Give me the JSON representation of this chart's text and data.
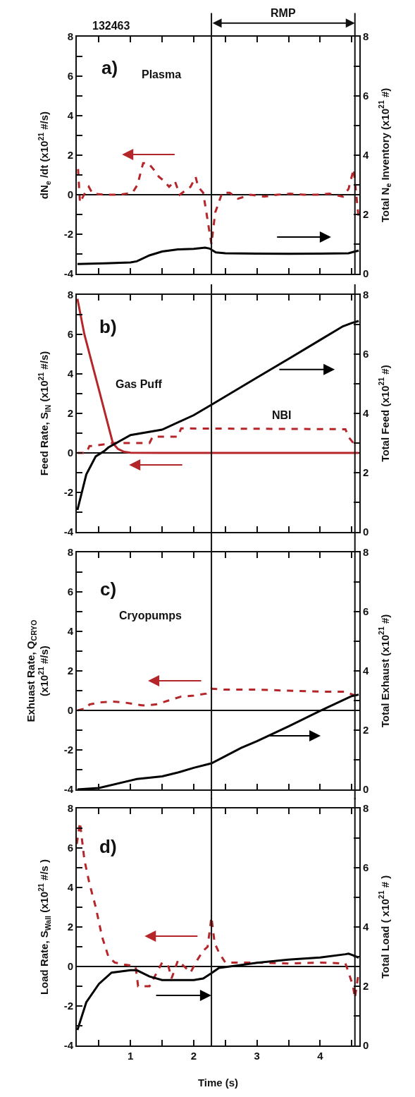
{
  "chart_data": [
    {
      "type": "line",
      "ylabel": "dN$_{e}$ /dt (x10$^{21}$ #/s)",
      "y2label": "Total N$_{e}$ Inventory (x10$^{21}$ #)",
      "xlim": [
        0.15,
        4.62
      ],
      "xticks": [
        {
          "value": 0.5,
          "label": null
        },
        1,
        {
          "value": 1.5,
          "label": null
        },
        2,
        {
          "value": 2.5,
          "label": null
        },
        3,
        {
          "value": 3.5,
          "label": null
        },
        4,
        {
          "value": 4.5,
          "label": null
        }
      ],
      "ylim": [
        -4,
        8
      ],
      "yticks": [
        -4,
        {
          "value": -3,
          "label": null
        },
        -2,
        {
          "value": -1,
          "label": null
        },
        0,
        {
          "value": 1,
          "label": null
        },
        2,
        {
          "value": 3,
          "label": null
        },
        4,
        {
          "value": 5,
          "label": null
        },
        6,
        {
          "value": 7,
          "label": null
        },
        8
      ],
      "y2lim": [
        0,
        8
      ],
      "y2ticks": [
        0,
        {
          "value": 1,
          "label": null
        },
        2,
        {
          "value": 3,
          "label": null
        },
        4,
        {
          "value": 5,
          "label": null
        },
        6,
        {
          "value": 7,
          "label": null
        },
        8
      ],
      "tick_labels": "y",
      "marker": "none",
      "series": [
        {
          "color": "#b5262a",
          "line_style": "dashed",
          "x": [
            0.17,
            0.2,
            0.28,
            0.34,
            0.4,
            0.61,
            0.82,
            1.03,
            1.11,
            1.2,
            1.28,
            1.36,
            1.45,
            1.53,
            1.61,
            1.7,
            1.78,
            1.86,
            1.95,
            2.03,
            2.07,
            2.15,
            2.22,
            2.28,
            2.34,
            2.45,
            2.57,
            2.7,
            2.9,
            3.11,
            3.32,
            3.53,
            3.74,
            3.95,
            4.15,
            4.36,
            4.45,
            4.53,
            4.61
          ],
          "values": [
            1.3,
            -0.4,
            0.1,
            0.4,
            0.05,
            0,
            0,
            0.1,
            0.5,
            1.6,
            1.6,
            1.3,
            0.9,
            0.7,
            0.4,
            0.7,
            0,
            0.2,
            0.4,
            0.9,
            0.4,
            0.1,
            -1.3,
            -2.5,
            -0.9,
            0.1,
            0.1,
            -0.2,
            0,
            -0.1,
            0,
            0.05,
            0,
            0,
            0.05,
            -0.1,
            0.3,
            1.3,
            -1.2
          ]
        },
        {
          "color": "#000000",
          "line_style": "solid",
          "axis": "y2",
          "x": [
            0.16,
            0.6,
            1.0,
            1.1,
            1.3,
            1.5,
            1.75,
            2.0,
            2.18,
            2.25,
            2.35,
            2.5,
            3.0,
            3.5,
            4.0,
            4.45,
            4.55,
            4.61
          ],
          "values": [
            0.33,
            0.35,
            0.38,
            0.42,
            0.62,
            0.75,
            0.82,
            0.84,
            0.88,
            0.85,
            0.72,
            0.69,
            0.68,
            0.67,
            0.68,
            0.69,
            0.75,
            0.78
          ]
        }
      ],
      "ref_lines": [
        {
          "axis": "x",
          "value": 2.28
        },
        {
          "axis": "x",
          "value": 4.55
        },
        {
          "axis": "y",
          "value": 0
        }
      ],
      "annotations": [
        "RMP",
        "132463",
        "a)",
        "Plasma"
      ]
    },
    {
      "type": "line",
      "ylabel": "Feed Rate, S$_{IN}$ (x10$^{21}$ #/s)",
      "y2label": "Total Feed (x10$^{21}$ #)",
      "xlim": [
        0.15,
        4.62
      ],
      "xticks": [
        {
          "value": 0.5,
          "label": null
        },
        1,
        {
          "value": 1.5,
          "label": null
        },
        2,
        {
          "value": 2.5,
          "label": null
        },
        3,
        {
          "value": 3.5,
          "label": null
        },
        4,
        {
          "value": 4.5,
          "label": null
        }
      ],
      "ylim": [
        -4,
        8
      ],
      "yticks": [
        -4,
        {
          "value": -3,
          "label": null
        },
        -2,
        {
          "value": -1,
          "label": null
        },
        0,
        {
          "value": 1,
          "label": null
        },
        2,
        {
          "value": 3,
          "label": null
        },
        4,
        {
          "value": 5,
          "label": null
        },
        6,
        {
          "value": 7,
          "label": null
        },
        8
      ],
      "y2lim": [
        0,
        8
      ],
      "y2ticks": [
        0,
        {
          "value": 1,
          "label": null
        },
        2,
        {
          "value": 3,
          "label": null
        },
        4,
        {
          "value": 5,
          "label": null
        },
        6,
        {
          "value": 7,
          "label": null
        },
        8
      ],
      "tick_labels": "y",
      "marker": "none",
      "series": [
        {
          "color": "#b5262a",
          "line_style": "solid",
          "x": [
            0.16,
            0.27,
            0.5,
            0.72,
            0.8,
            0.9,
            1.0,
            1.5,
            2.28,
            3.0,
            4.0,
            4.61
          ],
          "values": [
            7.8,
            6.0,
            3.2,
            0.5,
            0.2,
            0.05,
            0.01,
            0,
            0,
            0,
            0,
            0
          ]
        },
        {
          "color": "#b5262a",
          "line_style": "dashed",
          "x": [
            0.16,
            0.3,
            0.35,
            0.4,
            0.72,
            1.3,
            1.35,
            1.75,
            1.8,
            4.4,
            4.45,
            4.55
          ],
          "values": [
            0,
            0,
            0.35,
            0.35,
            0.5,
            0.5,
            0.82,
            0.82,
            1.24,
            1.2,
            0.8,
            0.4
          ]
        },
        {
          "color": "#000000",
          "line_style": "solid",
          "axis": "y2",
          "x": [
            0.16,
            0.3,
            0.45,
            0.59,
            0.65,
            1.0,
            1.5,
            2.0,
            2.28,
            3.0,
            3.5,
            4.0,
            4.36,
            4.5,
            4.61
          ],
          "values": [
            0.74,
            1.94,
            2.55,
            2.74,
            2.85,
            3.27,
            3.45,
            3.94,
            4.29,
            5.21,
            5.84,
            6.48,
            6.94,
            7.05,
            7.12
          ]
        }
      ],
      "ref_lines": [
        {
          "axis": "x",
          "value": 2.28
        },
        {
          "axis": "x",
          "value": 4.55
        },
        {
          "axis": "y",
          "value": 0
        }
      ],
      "annotations": [
        "b)",
        "Gas Puff",
        "NBI"
      ]
    },
    {
      "type": "line",
      "ylabel": "Exhuast Rate, Q$_{CRYO}$\n(x10$^{21}$ #/s)",
      "y2label": "Total Exhaust (x10$^{21}$ #)",
      "xlim": [
        0.15,
        4.62
      ],
      "xticks": [
        {
          "value": 0.5,
          "label": null
        },
        1,
        {
          "value": 1.5,
          "label": null
        },
        2,
        {
          "value": 2.5,
          "label": null
        },
        3,
        {
          "value": 3.5,
          "label": null
        },
        4,
        {
          "value": 4.5,
          "label": null
        }
      ],
      "ylim": [
        -4,
        8
      ],
      "yticks": [
        -4,
        {
          "value": -3,
          "label": null
        },
        -2,
        {
          "value": -1,
          "label": null
        },
        0,
        {
          "value": 1,
          "label": null
        },
        2,
        {
          "value": 3,
          "label": null
        },
        4,
        {
          "value": 5,
          "label": null
        },
        6,
        {
          "value": 7,
          "label": null
        },
        8
      ],
      "y2lim": [
        0,
        8
      ],
      "y2ticks": [
        0,
        {
          "value": 1,
          "label": null
        },
        2,
        {
          "value": 3,
          "label": null
        },
        4,
        {
          "value": 5,
          "label": null
        },
        6,
        {
          "value": 7,
          "label": null
        },
        8
      ],
      "tick_labels": "y",
      "marker": "none",
      "series": [
        {
          "color": "#b5262a",
          "line_style": "dashed",
          "x": [
            0.16,
            0.3,
            0.35,
            0.5,
            0.7,
            0.9,
            1.2,
            1.4,
            1.6,
            1.8,
            2.0,
            2.2,
            2.28,
            2.5,
            3.0,
            3.5,
            4.0,
            4.4,
            4.55
          ],
          "values": [
            0,
            0.1,
            0.3,
            0.4,
            0.45,
            0.4,
            0.25,
            0.3,
            0.5,
            0.7,
            0.75,
            0.85,
            1.1,
            1.05,
            1.05,
            1.0,
            0.95,
            0.95,
            0.75
          ]
        },
        {
          "color": "#000000",
          "line_style": "solid",
          "axis": "y2",
          "x": [
            0.16,
            0.5,
            1.0,
            1.1,
            1.5,
            1.75,
            2.0,
            2.28,
            2.75,
            3.0,
            3.5,
            4.0,
            4.5,
            4.61
          ],
          "values": [
            0,
            0.05,
            0.3,
            0.35,
            0.44,
            0.57,
            0.73,
            0.88,
            1.4,
            1.63,
            2.13,
            2.65,
            3.15,
            3.2
          ]
        }
      ],
      "ref_lines": [
        {
          "axis": "x",
          "value": 2.28
        },
        {
          "axis": "x",
          "value": 4.55
        },
        {
          "axis": "y",
          "value": 0
        }
      ],
      "annotations": [
        "c)",
        "Cryopumps"
      ]
    },
    {
      "type": "line",
      "ylabel": "Load Rate, S$_{Wall}$ (x10$^{21}$ #/s )",
      "y2label": "Total Load ( x10$^{21}$ # )",
      "xlabel": "Time (s)",
      "xlim": [
        0.15,
        4.62
      ],
      "xticks": [
        {
          "value": 0.5,
          "label": null
        },
        1,
        {
          "value": 1.5,
          "label": null
        },
        2,
        {
          "value": 2.5,
          "label": null
        },
        3,
        {
          "value": 3.5,
          "label": null
        },
        4,
        {
          "value": 4.5,
          "label": null
        }
      ],
      "ylim": [
        -4,
        8
      ],
      "yticks": [
        -4,
        {
          "value": -3,
          "label": null
        },
        -2,
        {
          "value": -1,
          "label": null
        },
        0,
        {
          "value": 1,
          "label": null
        },
        2,
        {
          "value": 3,
          "label": null
        },
        4,
        {
          "value": 5,
          "label": null
        },
        6,
        {
          "value": 7,
          "label": null
        },
        8
      ],
      "y2lim": [
        0,
        8
      ],
      "y2ticks": [
        0,
        {
          "value": 1,
          "label": null
        },
        2,
        {
          "value": 3,
          "label": null
        },
        4,
        {
          "value": 5,
          "label": null
        },
        6,
        {
          "value": 7,
          "label": null
        },
        8
      ],
      "marker": "none",
      "series": [
        {
          "color": "#b5262a",
          "line_style": "dashed",
          "x": [
            0.15,
            0.2,
            0.27,
            0.35,
            0.45,
            0.55,
            0.65,
            0.75,
            0.9,
            1.0,
            1.08,
            1.12,
            1.3,
            1.4,
            1.5,
            1.6,
            1.65,
            1.75,
            1.85,
            1.95,
            2.05,
            2.15,
            2.22,
            2.28,
            2.33,
            2.4,
            2.5,
            2.7,
            3.0,
            3.5,
            4.0,
            4.4,
            4.45,
            4.52,
            4.55,
            4.6
          ],
          "values": [
            6.2,
            7.3,
            5.4,
            4.2,
            3.0,
            1.5,
            0.5,
            0.2,
            0.1,
            0.05,
            0,
            -1.0,
            -1.0,
            -0.4,
            0.2,
            0,
            -0.6,
            0.3,
            0,
            -0.3,
            0.3,
            0.8,
            1.0,
            2.5,
            1.2,
            0.7,
            0.2,
            0.2,
            0.2,
            0.15,
            0.2,
            0.15,
            -0.3,
            -1.0,
            -1.6,
            -0.5
          ]
        },
        {
          "color": "#000000",
          "line_style": "solid",
          "axis": "y2",
          "x": [
            0.16,
            0.3,
            0.5,
            0.7,
            1.0,
            1.1,
            1.3,
            1.5,
            2.0,
            2.15,
            2.28,
            2.4,
            2.7,
            3.0,
            3.5,
            4.0,
            4.4,
            4.45,
            4.55,
            4.61
          ],
          "values": [
            0.52,
            1.46,
            2.08,
            2.46,
            2.54,
            2.54,
            2.33,
            2.21,
            2.21,
            2.26,
            2.44,
            2.62,
            2.7,
            2.79,
            2.9,
            2.97,
            3.08,
            3.1,
            3.02,
            2.96
          ]
        }
      ],
      "ref_lines": [
        {
          "axis": "x",
          "value": 2.28
        },
        {
          "axis": "x",
          "value": 4.55
        },
        {
          "axis": "y",
          "value": 0
        }
      ],
      "annotations": [
        "d)"
      ]
    }
  ]
}
